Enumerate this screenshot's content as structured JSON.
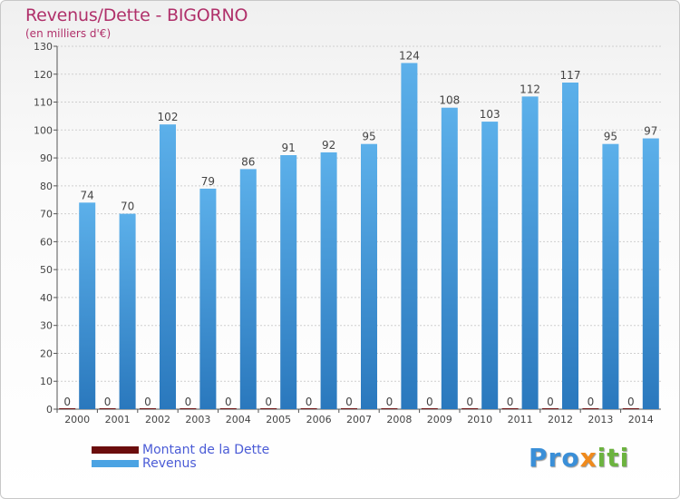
{
  "header": {
    "title": "Revenus/Dette - BIGORNO",
    "subtitle": "(en milliers d'€)"
  },
  "logo": {
    "text": "Proxiti",
    "part1": "Pro",
    "part2": "x",
    "part3": "iti"
  },
  "colors": {
    "dette": "#6b0d0d",
    "revenus": "#4ba3e3",
    "revenus_dark": "#2a78bd",
    "title": "#b0306a",
    "legend_text": "#4a5bd6"
  },
  "chart_data": {
    "type": "bar",
    "title": "Revenus/Dette - BIGORNO",
    "ylabel": "(en milliers d'€)",
    "xlabel": "",
    "ylim": [
      0,
      130
    ],
    "yticks": [
      0,
      10,
      20,
      30,
      40,
      50,
      60,
      70,
      80,
      90,
      100,
      110,
      120,
      130
    ],
    "grid": true,
    "legend_position": "bottom-left",
    "categories": [
      "2000",
      "2001",
      "2002",
      "2003",
      "2004",
      "2005",
      "2006",
      "2007",
      "2008",
      "2009",
      "2010",
      "2011",
      "2012",
      "2013",
      "2014"
    ],
    "series": [
      {
        "name": "Montant de la Dette",
        "values": [
          0,
          0,
          0,
          0,
          0,
          0,
          0,
          0,
          0,
          0,
          0,
          0,
          0,
          0,
          0
        ]
      },
      {
        "name": "Revenus",
        "values": [
          74,
          70,
          102,
          79,
          86,
          91,
          92,
          95,
          124,
          108,
          103,
          112,
          117,
          95,
          97
        ]
      }
    ]
  }
}
